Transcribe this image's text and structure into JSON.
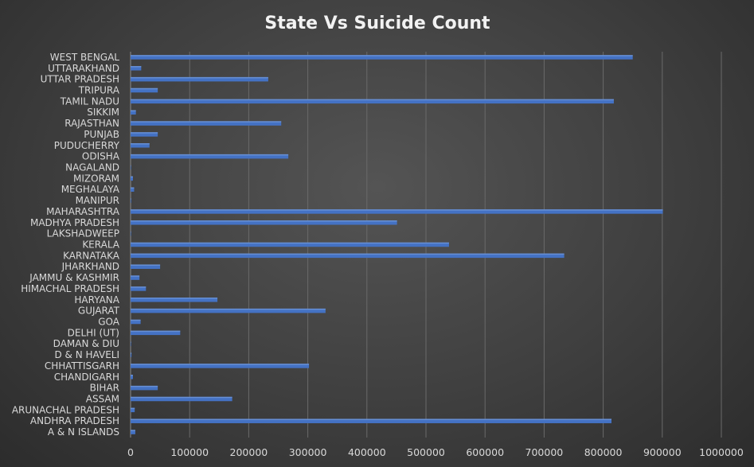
{
  "chart_data": {
    "type": "bar",
    "orientation": "horizontal",
    "title": "State Vs Suicide Count",
    "xlabel": "",
    "ylabel": "",
    "xlim": [
      0,
      1000000
    ],
    "x_ticks": [
      "0",
      "100000",
      "200000",
      "300000",
      "400000",
      "500000",
      "600000",
      "700000",
      "800000",
      "900000",
      "1000000"
    ],
    "grid": true,
    "legend": "none",
    "bar_color": "#4472c4",
    "categories": [
      "A & N ISLANDS",
      "ANDHRA PRADESH",
      "ARUNACHAL PRADESH",
      "ASSAM",
      "BIHAR",
      "CHANDIGARH",
      "CHHATTISGARH",
      "D & N HAVELI",
      "DAMAN & DIU",
      "DELHI (UT)",
      "GOA",
      "GUJARAT",
      "HARYANA",
      "HIMACHAL PRADESH",
      "JAMMU & KASHMIR",
      "JHARKHAND",
      "KARNATAKA",
      "KERALA",
      "LAKSHADWEEP",
      "MADHYA PRADESH",
      "MAHARASHTRA",
      "MANIPUR",
      "MEGHALAYA",
      "MIZORAM",
      "NAGALAND",
      "ODISHA",
      "PUDUCHERRY",
      "PUNJAB",
      "RAJASTHAN",
      "SIKKIM",
      "TAMIL NADU",
      "TRIPURA",
      "UTTAR PRADESH",
      "UTTARAKHAND",
      "WEST BENGAL"
    ],
    "values": [
      8000,
      814000,
      7000,
      172000,
      46000,
      4000,
      302000,
      1500,
      700,
      84000,
      17000,
      330000,
      147000,
      26000,
      15000,
      50000,
      734000,
      539000,
      100,
      451000,
      901000,
      1000,
      6000,
      4000,
      300,
      267000,
      32000,
      46000,
      255000,
      9000,
      818000,
      46000,
      233000,
      18000,
      850000
    ]
  }
}
